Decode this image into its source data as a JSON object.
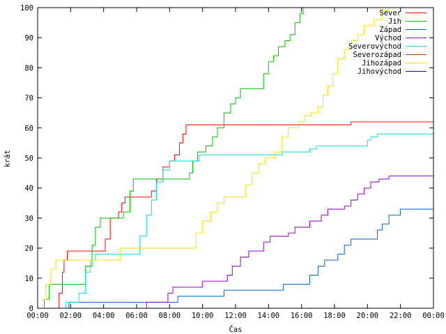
{
  "chart_data": {
    "type": "line",
    "title": "",
    "xlabel": "Čas",
    "ylabel": "krát",
    "xlim": [
      0,
      24
    ],
    "ylim": [
      0,
      100
    ],
    "x_ticks": [
      "00:00",
      "02:00",
      "04:00",
      "06:00",
      "08:00",
      "10:00",
      "12:00",
      "14:00",
      "16:00",
      "18:00",
      "20:00",
      "22:00",
      "00:00"
    ],
    "y_ticks": [
      "0",
      "10",
      "20",
      "30",
      "40",
      "50",
      "60",
      "70",
      "80",
      "90",
      "100"
    ],
    "legend_position": "top-right",
    "grid": false,
    "series": [
      {
        "name": "Sever",
        "color": "#ff0000",
        "points": [
          [
            1.1,
            0
          ],
          [
            1.3,
            5
          ],
          [
            1.5,
            12
          ],
          [
            1.6,
            16
          ],
          [
            1.8,
            19
          ],
          [
            2.5,
            19
          ],
          [
            3.8,
            19
          ],
          [
            4.1,
            23
          ],
          [
            4.4,
            30
          ],
          [
            4.9,
            32
          ],
          [
            5.1,
            35
          ],
          [
            5.3,
            37
          ],
          [
            6.5,
            37
          ],
          [
            6.9,
            39
          ],
          [
            7.2,
            43
          ],
          [
            7.6,
            47
          ],
          [
            8.0,
            49
          ],
          [
            8.3,
            51
          ],
          [
            8.6,
            55
          ],
          [
            8.8,
            58
          ],
          [
            9.0,
            61
          ],
          [
            10.0,
            61
          ],
          [
            18.5,
            61
          ],
          [
            19.0,
            62
          ],
          [
            24.0,
            62
          ]
        ]
      },
      {
        "name": "Jih",
        "color": "#00c000",
        "points": [
          [
            0.2,
            0
          ],
          [
            0.4,
            3
          ],
          [
            0.7,
            8
          ],
          [
            2.5,
            8
          ],
          [
            2.9,
            14
          ],
          [
            3.3,
            21
          ],
          [
            3.5,
            27
          ],
          [
            3.8,
            30
          ],
          [
            5.0,
            30
          ],
          [
            5.2,
            32
          ],
          [
            5.6,
            39
          ],
          [
            5.8,
            43
          ],
          [
            9.0,
            43
          ],
          [
            9.2,
            45
          ],
          [
            9.4,
            49
          ],
          [
            9.7,
            52
          ],
          [
            10.2,
            54
          ],
          [
            10.6,
            57
          ],
          [
            10.9,
            60
          ],
          [
            11.3,
            65
          ],
          [
            11.7,
            68
          ],
          [
            12.0,
            70
          ],
          [
            12.3,
            73
          ],
          [
            13.4,
            73
          ],
          [
            13.7,
            78
          ],
          [
            14.0,
            82
          ],
          [
            14.3,
            84
          ],
          [
            14.6,
            87
          ],
          [
            15.0,
            89
          ],
          [
            15.3,
            91
          ],
          [
            15.6,
            95
          ],
          [
            15.9,
            98
          ],
          [
            16.1,
            100
          ],
          [
            24.0,
            100
          ]
        ]
      },
      {
        "name": "Západ",
        "color": "#0066cc",
        "points": [
          [
            1.8,
            0
          ],
          [
            1.9,
            2
          ],
          [
            8.1,
            2
          ],
          [
            8.5,
            4
          ],
          [
            10.8,
            4
          ],
          [
            11.3,
            6
          ],
          [
            14.5,
            6
          ],
          [
            14.9,
            8
          ],
          [
            16.0,
            8
          ],
          [
            16.5,
            11
          ],
          [
            17.0,
            14
          ],
          [
            17.4,
            16
          ],
          [
            18.2,
            18
          ],
          [
            18.6,
            21
          ],
          [
            19.0,
            23
          ],
          [
            20.3,
            23
          ],
          [
            20.6,
            26
          ],
          [
            20.9,
            28
          ],
          [
            21.3,
            31
          ],
          [
            22.0,
            33
          ],
          [
            24.0,
            33
          ]
        ]
      },
      {
        "name": "Východ",
        "color": "#9900cc",
        "points": [
          [
            6.5,
            0
          ],
          [
            6.6,
            2
          ],
          [
            7.7,
            2
          ],
          [
            7.9,
            5
          ],
          [
            8.2,
            7
          ],
          [
            9.5,
            7
          ],
          [
            10.0,
            9
          ],
          [
            11.2,
            9
          ],
          [
            11.5,
            11
          ],
          [
            11.8,
            14
          ],
          [
            12.3,
            17
          ],
          [
            12.8,
            19
          ],
          [
            13.7,
            22
          ],
          [
            14.1,
            24
          ],
          [
            15.2,
            25
          ],
          [
            15.6,
            27
          ],
          [
            16.5,
            29
          ],
          [
            17.2,
            31
          ],
          [
            17.6,
            33
          ],
          [
            18.6,
            34
          ],
          [
            19.0,
            36
          ],
          [
            19.4,
            38
          ],
          [
            19.8,
            40
          ],
          [
            20.2,
            42
          ],
          [
            20.7,
            43
          ],
          [
            21.3,
            44
          ],
          [
            24.0,
            44
          ]
        ]
      },
      {
        "name": "Severovýchod",
        "color": "#00e0e0",
        "points": [
          [
            1.5,
            0
          ],
          [
            1.7,
            2
          ],
          [
            2.5,
            5
          ],
          [
            2.9,
            12
          ],
          [
            3.2,
            16
          ],
          [
            3.5,
            18
          ],
          [
            5.8,
            18
          ],
          [
            6.2,
            24
          ],
          [
            6.6,
            31
          ],
          [
            6.9,
            36
          ],
          [
            7.2,
            42
          ],
          [
            7.6,
            46
          ],
          [
            8.0,
            49
          ],
          [
            9.5,
            49
          ],
          [
            9.8,
            51
          ],
          [
            14.4,
            51
          ],
          [
            14.8,
            52
          ],
          [
            16.5,
            53
          ],
          [
            16.9,
            54
          ],
          [
            19.8,
            54
          ],
          [
            20.0,
            56
          ],
          [
            20.2,
            57
          ],
          [
            20.6,
            58
          ],
          [
            24.0,
            58
          ]
        ]
      },
      {
        "name": "Severozápad",
        "color": "#cc3300",
        "points": []
      },
      {
        "name": "Jihozápad",
        "color": "#ffdd00",
        "points": [
          [
            0.3,
            3
          ],
          [
            0.5,
            8
          ],
          [
            0.8,
            13
          ],
          [
            1.1,
            16
          ],
          [
            4.7,
            16
          ],
          [
            5.0,
            20
          ],
          [
            9.2,
            20
          ],
          [
            9.6,
            25
          ],
          [
            10.0,
            29
          ],
          [
            10.5,
            32
          ],
          [
            10.9,
            35
          ],
          [
            11.3,
            37
          ],
          [
            12.2,
            37
          ],
          [
            12.6,
            41
          ],
          [
            13.0,
            45
          ],
          [
            13.4,
            48
          ],
          [
            13.8,
            50
          ],
          [
            14.4,
            52
          ],
          [
            14.8,
            57
          ],
          [
            15.2,
            60
          ],
          [
            15.8,
            62
          ],
          [
            16.2,
            64
          ],
          [
            16.6,
            65
          ],
          [
            17.0,
            67
          ],
          [
            17.3,
            71
          ],
          [
            17.6,
            74
          ],
          [
            17.9,
            78
          ],
          [
            18.2,
            83
          ],
          [
            18.6,
            86
          ],
          [
            19.0,
            89
          ],
          [
            19.4,
            91
          ],
          [
            19.8,
            94
          ],
          [
            20.4,
            96
          ],
          [
            20.9,
            99
          ],
          [
            21.3,
            100
          ],
          [
            24.0,
            100
          ]
        ]
      },
      {
        "name": "Jihovýchod",
        "color": "#0000a0",
        "points": []
      }
    ]
  }
}
